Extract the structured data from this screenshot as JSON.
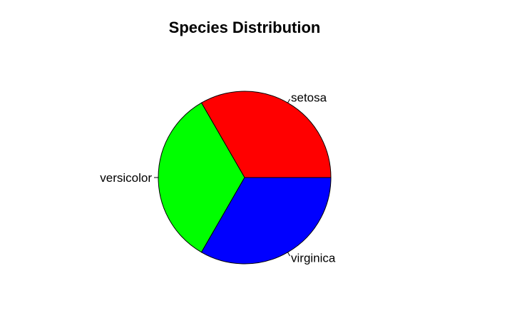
{
  "chart_data": {
    "type": "pie",
    "title": "Species Distribution",
    "slices": [
      {
        "label": "setosa",
        "value": 50,
        "color": "#ff0000"
      },
      {
        "label": "versicolor",
        "value": 50,
        "color": "#00ff00"
      },
      {
        "label": "virginica",
        "value": 50,
        "color": "#0000ff"
      }
    ],
    "start_angle_deg": 0,
    "direction": "counterclockwise"
  }
}
